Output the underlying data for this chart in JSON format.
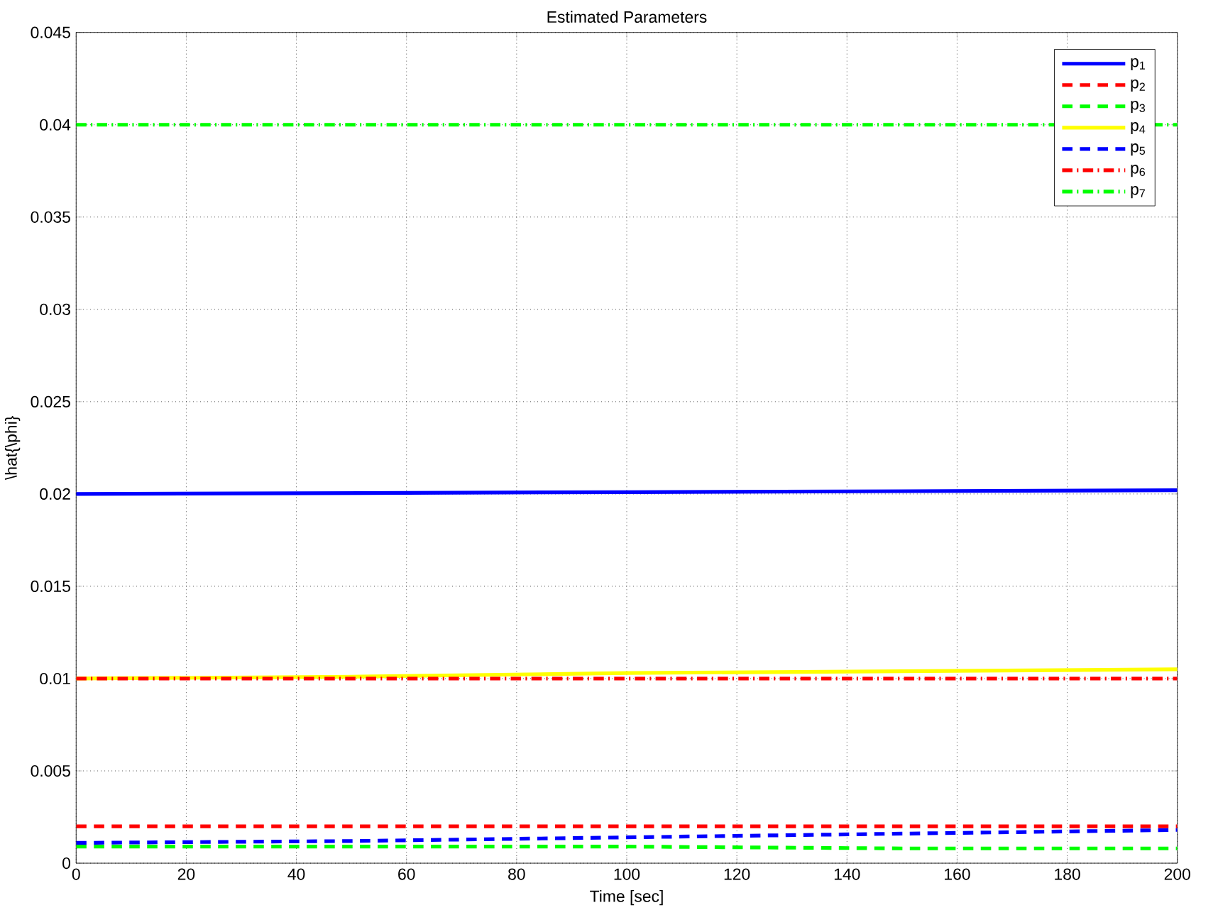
{
  "chart_data": {
    "type": "line",
    "title": "Estimated Parameters",
    "xlabel": "Time [sec]",
    "ylabel": "\\hat{\\phi}",
    "x": [
      0,
      50,
      100,
      150,
      200
    ],
    "series": [
      {
        "name": "p$_{1}$",
        "color": "#0000ff",
        "line_style": "solid",
        "values": [
          0.02,
          0.02005,
          0.0201,
          0.02015,
          0.0202
        ]
      },
      {
        "name": "p$_{2}$",
        "color": "#ff0000",
        "line_style": "dashed",
        "values": [
          0.002,
          0.002,
          0.002,
          0.002,
          0.002
        ]
      },
      {
        "name": "p$_{3}$",
        "color": "#00ff00",
        "line_style": "dashed",
        "values": [
          0.0009,
          0.0009,
          0.0009,
          0.0008,
          0.0008
        ]
      },
      {
        "name": "p$_{4}$",
        "color": "#ffff00",
        "line_style": "solid",
        "values": [
          0.01,
          0.0101,
          0.0103,
          0.0104,
          0.0105
        ]
      },
      {
        "name": "p$_{5}$",
        "color": "#0000ff",
        "line_style": "dashed",
        "values": [
          0.0011,
          0.0012,
          0.0014,
          0.0016,
          0.0018
        ]
      },
      {
        "name": "p$_{6}$",
        "color": "#ff0000",
        "line_style": "dashdot",
        "values": [
          0.01,
          0.01,
          0.01,
          0.01,
          0.01
        ]
      },
      {
        "name": "p$_{7}$",
        "color": "#00ff00",
        "line_style": "dashdot",
        "values": [
          0.04,
          0.04,
          0.04,
          0.04,
          0.04
        ]
      }
    ],
    "xlim": [
      0,
      200
    ],
    "xticks": [
      0,
      20,
      40,
      60,
      80,
      100,
      120,
      140,
      160,
      180,
      200
    ],
    "ylim": [
      0,
      0.045
    ],
    "yticks": [
      0,
      0.005,
      0.01,
      0.015,
      0.02,
      0.025,
      0.03,
      0.035,
      0.04,
      0.045
    ],
    "grid": true,
    "legend": "top right",
    "marker": "none"
  }
}
